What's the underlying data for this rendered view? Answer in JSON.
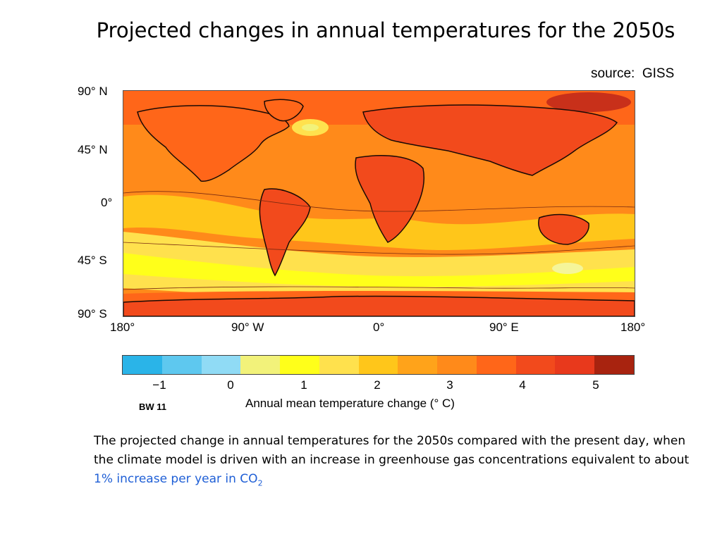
{
  "title": "Projected changes in annual temperatures for the 2050s",
  "source": "source:  GISS",
  "map": {
    "lat_labels": [
      "90° N",
      "45° N",
      "0°",
      "45° S",
      "90° S"
    ],
    "lon_labels": [
      "180°",
      "90° W",
      "0°",
      "90° E",
      "180°"
    ]
  },
  "colorbar": {
    "colors": [
      "#2ab4e8",
      "#5ec8ef",
      "#90dbf5",
      "#f2f27a",
      "#ffff1a",
      "#ffe14d",
      "#ffc61a",
      "#ffa31a",
      "#ff8a1a",
      "#ff6619",
      "#f24a1c",
      "#e8391c",
      "#a8230f"
    ],
    "tick_labels": [
      "−1",
      "0",
      "1",
      "2",
      "3",
      "4",
      "5"
    ],
    "label": "Annual mean temperature change (° C)"
  },
  "figure_tag": "BW 11",
  "caption": {
    "text": "The projected change in annual temperatures for the 2050s compared with the present day, when the climate model is driven with an increase in greenhouse gas concentrations equivalent to about ",
    "highlight": "1% increase per year in CO",
    "subscript": "2"
  }
}
